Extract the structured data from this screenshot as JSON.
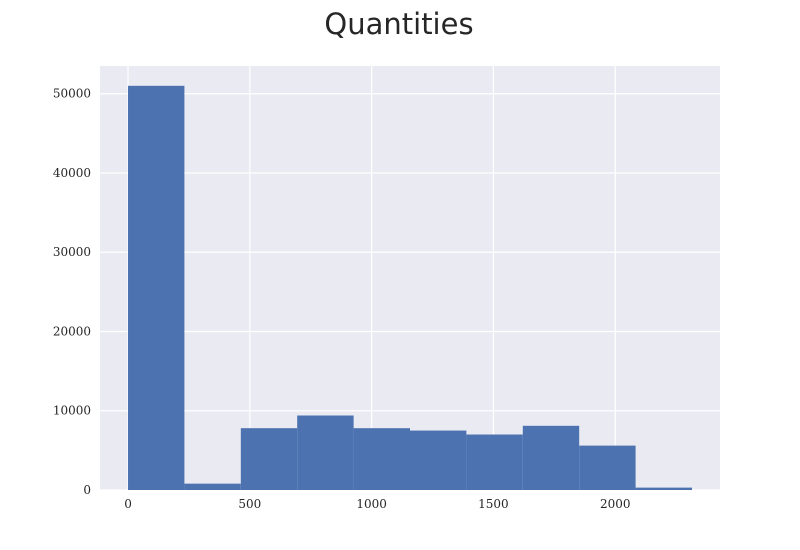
{
  "chart_data": {
    "type": "histogram",
    "title": "Quantities",
    "xlabel": "",
    "ylabel": "",
    "bin_edges": [
      0,
      231.5,
      463,
      694.5,
      926,
      1157.5,
      1389,
      1620.5,
      1852,
      2083.5,
      2315
    ],
    "counts": [
      51000,
      800,
      7800,
      9400,
      7800,
      7500,
      7000,
      8100,
      5600,
      300
    ],
    "xlim": [
      -115,
      2430
    ],
    "ylim": [
      0,
      53500
    ],
    "xticks": [
      0,
      500,
      1000,
      1500,
      2000
    ],
    "yticks": [
      0,
      10000,
      20000,
      30000,
      40000,
      50000
    ],
    "grid": true,
    "colors": {
      "bar": "#4c72b0",
      "plot_background": "#eaeaf2",
      "grid": "#ffffff"
    }
  }
}
